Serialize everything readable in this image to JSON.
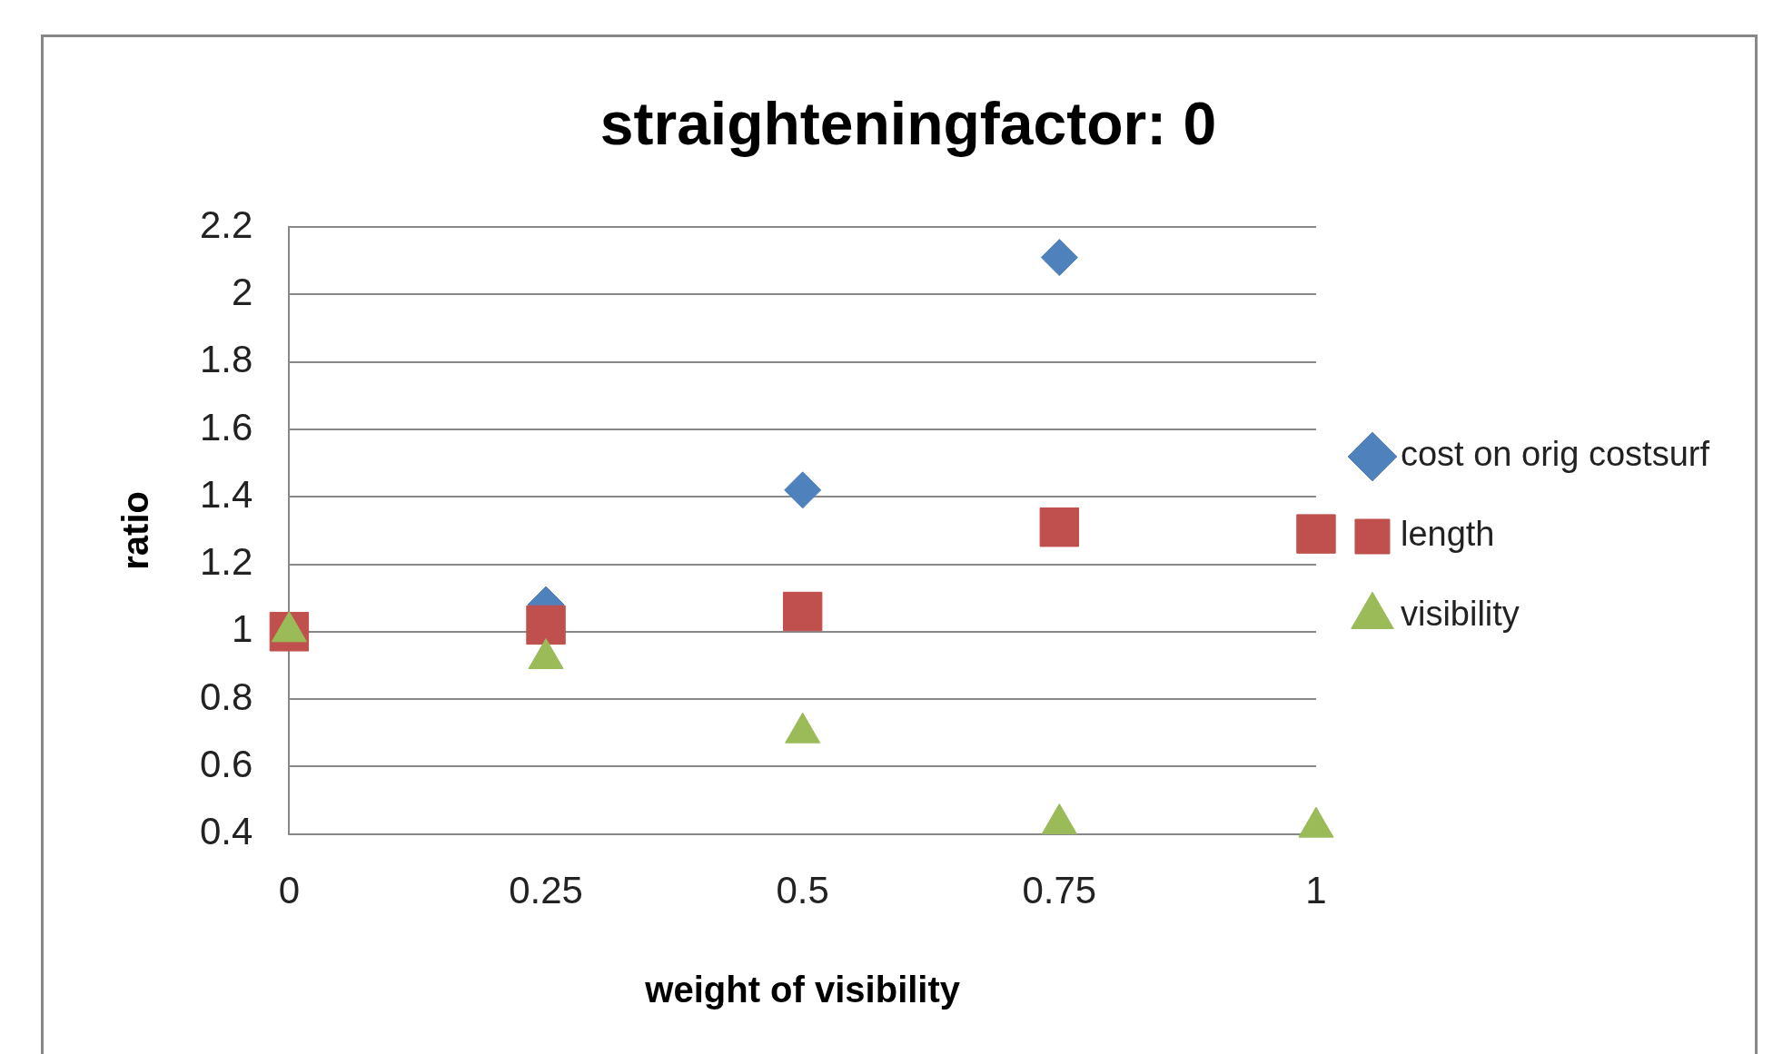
{
  "chart_data": {
    "type": "scatter",
    "title": "straighteningfactor: 0",
    "xlabel": "weight of visibility",
    "ylabel": "ratio",
    "x": [
      0,
      0.25,
      0.5,
      0.75,
      1
    ],
    "series": [
      {
        "name": "cost on orig costsurf",
        "color": "#4f81bd",
        "marker": "diamond",
        "values": [
          null,
          1.08,
          1.42,
          2.11,
          null
        ]
      },
      {
        "name": "length",
        "color": "#c0504d",
        "marker": "square",
        "values": [
          1.0,
          1.02,
          1.06,
          1.31,
          1.29
        ]
      },
      {
        "name": "visibility",
        "color": "#9bbb59",
        "marker": "triangle",
        "values": [
          1.0,
          0.92,
          0.7,
          0.43,
          0.42
        ]
      }
    ],
    "xlim": [
      0,
      1
    ],
    "xticks": [
      0,
      0.25,
      0.5,
      0.75,
      1
    ],
    "ylim": [
      0.4,
      2.2
    ],
    "yticks": [
      0.4,
      0.6,
      0.8,
      1,
      1.2,
      1.4,
      1.6,
      1.8,
      2,
      2.2
    ],
    "grid": "y",
    "legend": "right"
  }
}
